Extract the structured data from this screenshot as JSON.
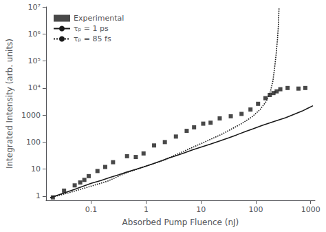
{
  "chart_data": {
    "type": "line",
    "xlabel": "Absorbed Pump Fluence (nJ)",
    "ylabel": "Integrated Intensity (arb. units)",
    "log": true,
    "xlim": [
      0.015,
      1200
    ],
    "ylim": [
      0.7,
      10000000
    ],
    "xticks": [
      0.1,
      1,
      10,
      100,
      1000
    ],
    "yticks": [
      1,
      10,
      100,
      1000,
      {
        "value": 10000,
        "label": "10⁴"
      },
      {
        "value": 100000,
        "label": "10⁵"
      },
      {
        "value": 1000000,
        "label": "10⁶"
      },
      {
        "value": 10000000,
        "label": "10⁷"
      }
    ],
    "grid": false,
    "legend": "upper left",
    "series": [
      {
        "name": "Experimental",
        "type": "scatter",
        "marker": "square",
        "color": "#1a1a1a",
        "x": [
          0.02,
          0.032,
          0.05,
          0.063,
          0.075,
          0.09,
          0.13,
          0.18,
          0.25,
          0.45,
          0.65,
          0.9,
          1.4,
          2.2,
          3.5,
          5.5,
          7.5,
          11.0,
          15.0,
          22.0,
          35.0,
          55.0,
          80.0,
          110.0,
          150.0,
          180.0,
          210.0,
          240.0,
          280.0,
          380.0,
          600.0,
          800.0
        ],
        "values": [
          0.9,
          1.6,
          2.5,
          3.2,
          4.0,
          5.5,
          8.5,
          12.0,
          18.0,
          30.0,
          28.0,
          38.0,
          75.0,
          100.0,
          160.0,
          260.0,
          350.0,
          480.0,
          520.0,
          750.0,
          900.0,
          1100.0,
          1600.0,
          2600.0,
          4200.0,
          5500.0,
          6500.0,
          7500.0,
          9000.0,
          10000.0,
          9500.0,
          10000.0
        ]
      },
      {
        "name": "τₚ = 1 ps",
        "type": "line",
        "line_style": "solid",
        "color": "#1a1a1a",
        "x": [
          0.018,
          0.025,
          0.035,
          0.05,
          0.07,
          0.1,
          0.15,
          0.22,
          0.32,
          0.45,
          0.65,
          0.9,
          1.3,
          1.8,
          2.5,
          3.5,
          5.0,
          7.0,
          10.0,
          15.0,
          22.0,
          32.0,
          45.0,
          65.0,
          90.0,
          130.0,
          180.0,
          250.0,
          350.0,
          500.0,
          700.0,
          900.0,
          1100.0
        ],
        "values": [
          0.88,
          1.1,
          1.4,
          1.8,
          2.3,
          3.0,
          3.8,
          4.9,
          6.2,
          7.8,
          9.8,
          12.0,
          15.5,
          19.5,
          25.0,
          31.0,
          40.0,
          51.0,
          65.0,
          85.0,
          110.0,
          143.0,
          185.0,
          245.0,
          310.0,
          410.0,
          510.0,
          640.0,
          800.0,
          1060.0,
          1400.0,
          1800.0,
          2200.0
        ]
      },
      {
        "name": "τₚ = 85 fs",
        "type": "line",
        "line_style": "dotted",
        "color": "#1a1a1a",
        "x": [
          0.018,
          0.04,
          0.09,
          0.2,
          0.45,
          1.0,
          2.2,
          5.0,
          11.0,
          24.0,
          54.0,
          85.0,
          120.0,
          155.0,
          185.0,
          205.0,
          220.0,
          235.0,
          248.0,
          258.0,
          265.0
        ],
        "values": [
          0.88,
          1.35,
          2.2,
          3.6,
          7.5,
          13.0,
          22.0,
          47.0,
          95.0,
          195.0,
          470.0,
          850.0,
          1600.0,
          3200.0,
          7500.0,
          18000.0,
          55000.0,
          180000.0,
          600000.0,
          2000000.0,
          9000000.0
        ]
      }
    ]
  }
}
